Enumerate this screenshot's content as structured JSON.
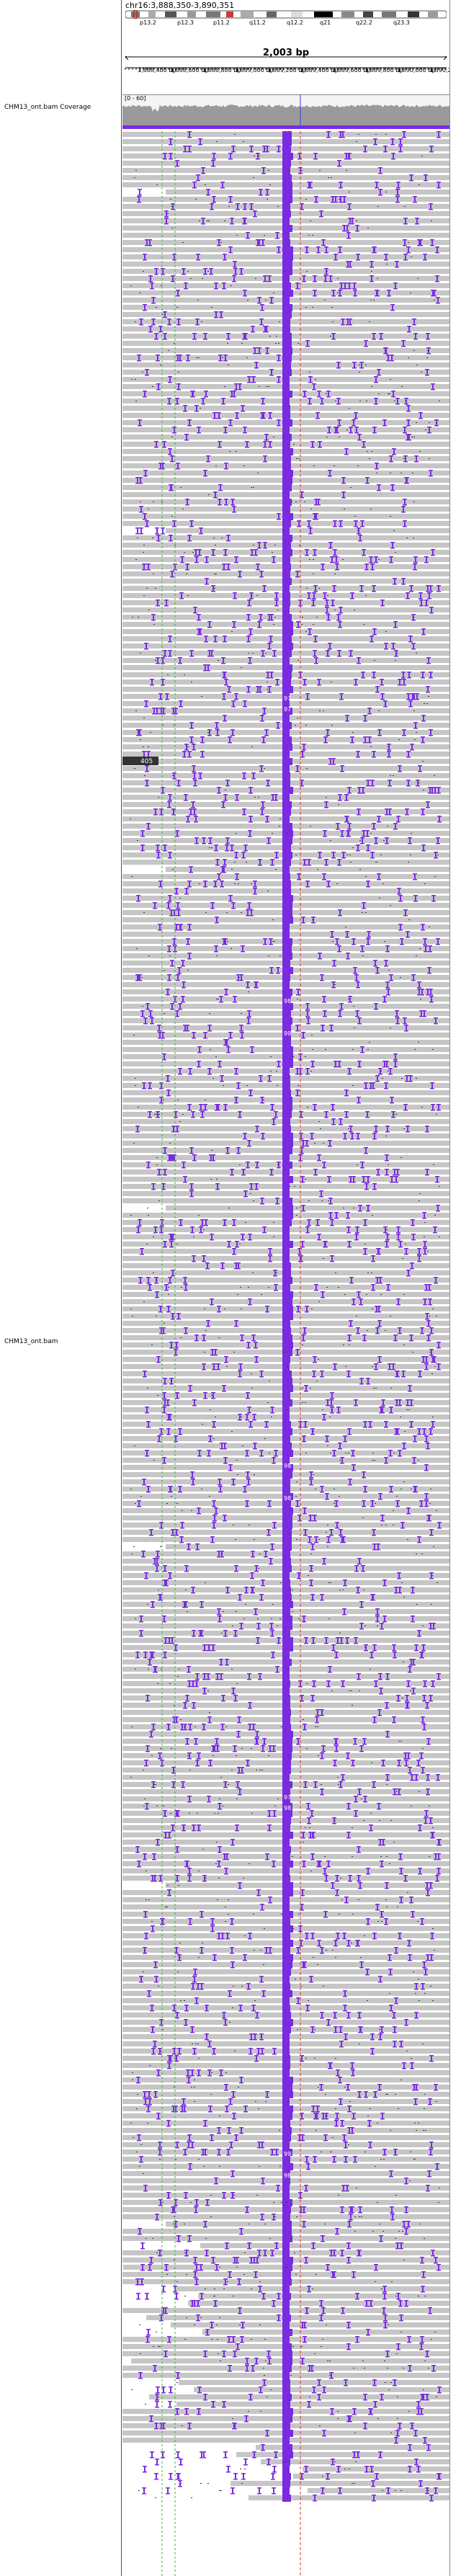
{
  "header": {
    "locus": "chr16:3,888,350-3,890,351",
    "span": "2,003 bp",
    "bands": [
      "p13.2",
      "p12.3",
      "p11.2",
      "q11.2",
      "q12.2",
      "q21",
      "q22.2",
      "q23.3"
    ],
    "ticks": [
      "3,888,400 bp",
      "3,888,600 bp",
      "3,888,800 bp",
      "3,889,000 bp",
      "3,889,200 bp",
      "3,889,400 bp",
      "3,889,600 bp",
      "3,889,800 bp",
      "3,890,000 bp",
      "3,890,200 bp"
    ]
  },
  "tracks": {
    "coverage_label": "CHM13_ont.bam Coverage",
    "coverage_range": "[0 - 60]",
    "alignment_label": "CHM13_ont.bam"
  },
  "alignments": {
    "insert_label": "405",
    "insert_markers": [
      "97",
      "97",
      "98",
      "99",
      "98",
      "98",
      "97",
      "98",
      "99",
      "98"
    ]
  },
  "colors": {
    "read": "#c6c6c6",
    "insertion": "#7a2be2",
    "mismatch_line": "#3bb53b",
    "center_line": "#e03030",
    "background": "#ffffff"
  }
}
